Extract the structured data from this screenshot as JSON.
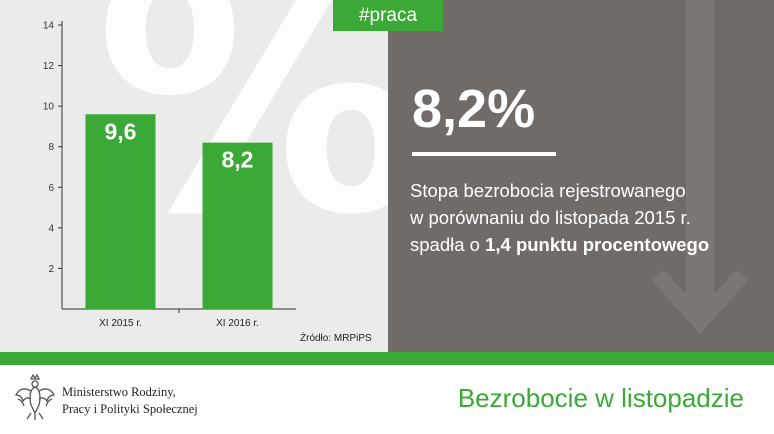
{
  "hashtag": "#praca",
  "headline_value": "8,2%",
  "description": {
    "line1": "Stopa bezrobocia rejestrowanego",
    "line2": "w porównaniu do listopada 2015 r.",
    "line3_prefix": "spadła o ",
    "line3_bold": "1,4 punktu procentowego"
  },
  "source": "Źródło: MRPiPS",
  "ministry": {
    "line1": "Ministerstwo Rodziny,",
    "line2": "Pracy i Polityki Społecznej"
  },
  "footer_title": "Bezrobocie w listopadzie",
  "colors": {
    "green": "#3aa935",
    "gray_panel": "#716b68",
    "light_panel": "#ebebeb"
  },
  "icons": [
    "percent-background",
    "down-arrow-icon",
    "eagle-emblem-icon"
  ],
  "chart_data": {
    "type": "bar",
    "categories": [
      "XI 2015 r.",
      "XI 2016 r."
    ],
    "values": [
      9.6,
      8.2
    ],
    "value_labels": [
      "9,6",
      "8,2"
    ],
    "ylim": [
      0,
      14
    ],
    "yticks": [
      2,
      4,
      6,
      8,
      10,
      12,
      14
    ],
    "grid": false,
    "legend": "none"
  }
}
